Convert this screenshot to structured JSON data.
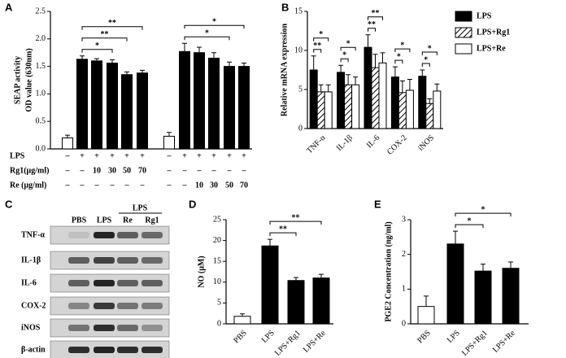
{
  "chart_data": [
    {
      "panel_label": "A",
      "type": "bar",
      "ylabel": [
        "SEAP activity",
        "OD value (630nm)"
      ],
      "values": [
        0.2,
        1.63,
        1.6,
        1.56,
        1.35,
        1.38,
        0.23,
        1.77,
        1.75,
        1.65,
        1.5,
        1.5
      ],
      "errors": [
        0.05,
        0.06,
        0.04,
        0.06,
        0.05,
        0.05,
        0.07,
        0.15,
        0.1,
        0.1,
        0.08,
        0.06
      ],
      "colors": [
        "#ffffff",
        "#000000",
        "#000000",
        "#000000",
        "#000000",
        "#000000",
        "#ffffff",
        "#000000",
        "#000000",
        "#000000",
        "#000000",
        "#000000"
      ],
      "ylim": [
        0,
        2.5
      ],
      "yticks": [
        {
          "value": 0,
          "label": "0.0"
        },
        0.5,
        {
          "value": 1,
          "label": "1.0"
        },
        1.5,
        {
          "value": 2,
          "label": "2.0"
        },
        2.5
      ],
      "condition_table": {
        "row_labels": [
          "LPS",
          "Rg1(μg/ml)",
          "Re (μg/ml)"
        ],
        "rows": [
          [
            "–",
            "+",
            "+",
            "+",
            "+",
            "+",
            "–",
            "+",
            "+",
            "+",
            "+",
            "+"
          ],
          [
            "–",
            "–",
            "10",
            "30",
            "50",
            "70",
            "–",
            "–",
            "–",
            "–",
            "–",
            "–"
          ],
          [
            "–",
            "–",
            "–",
            "–",
            "–",
            "–",
            "–",
            "–",
            "10",
            "30",
            "50",
            "70"
          ]
        ]
      },
      "significance": [
        {
          "pair": [
            1,
            3
          ],
          "label": "*"
        },
        {
          "pair": [
            1,
            4
          ],
          "label": "**"
        },
        {
          "pair": [
            1,
            5
          ],
          "label": "**"
        },
        {
          "pair": [
            7,
            10
          ],
          "label": "*"
        },
        {
          "pair": [
            7,
            11
          ],
          "label": "*"
        }
      ]
    },
    {
      "panel_label": "B",
      "type": "grouped_bar",
      "ylabel": "Relative mRNA expression",
      "categories": [
        "TNF-α",
        "IL-1β",
        "IL-6",
        "COX-2",
        "iNOS"
      ],
      "series": [
        {
          "name": "LPS",
          "color": "#000000",
          "values": [
            7.5,
            7.2,
            10.4,
            6.6,
            6.7
          ],
          "errors": [
            1.8,
            0.9,
            1.6,
            1.3,
            0.8
          ]
        },
        {
          "name": "LPS+Rg1",
          "color": "#ffffff",
          "hatch": true,
          "values": [
            4.7,
            5.6,
            7.8,
            4.6,
            3.2
          ],
          "errors": [
            0.9,
            1.3,
            1.7,
            1.5,
            0.6
          ]
        },
        {
          "name": "LPS+Re",
          "color": "#ffffff",
          "values": [
            4.7,
            5.6,
            8.4,
            4.9,
            4.8
          ],
          "errors": [
            0.9,
            1.0,
            1.3,
            1.4,
            0.9
          ]
        }
      ],
      "ylim": [
        0,
        15
      ],
      "yticks": [
        0,
        5,
        10,
        15
      ],
      "legend": "top-right",
      "significance": [
        {
          "category": 0,
          "pair": [
            0,
            1
          ],
          "label": "**"
        },
        {
          "category": 0,
          "pair": [
            0,
            2
          ],
          "label": "*"
        },
        {
          "category": 1,
          "pair": [
            0,
            1
          ],
          "label": "*"
        },
        {
          "category": 1,
          "pair": [
            0,
            2
          ],
          "label": "*"
        },
        {
          "category": 2,
          "pair": [
            0,
            1
          ],
          "label": "**"
        },
        {
          "category": 2,
          "pair": [
            0,
            2
          ],
          "label": "**"
        },
        {
          "category": 3,
          "pair": [
            0,
            1
          ],
          "label": "*"
        },
        {
          "category": 3,
          "pair": [
            0,
            2
          ],
          "label": "*"
        },
        {
          "category": 4,
          "pair": [
            0,
            1
          ],
          "label": "*"
        },
        {
          "category": 4,
          "pair": [
            0,
            2
          ],
          "label": "*"
        }
      ]
    },
    {
      "panel_label": "D",
      "type": "bar",
      "ylabel": "NO (μM)",
      "categories": [
        "PBS",
        "LPS",
        "LPS+Rg1",
        "LPS+Re"
      ],
      "values": [
        1.8,
        18.7,
        10.4,
        11.0
      ],
      "errors": [
        0.6,
        1.6,
        0.7,
        0.9
      ],
      "colors": [
        "#ffffff",
        "#000000",
        "#000000",
        "#000000"
      ],
      "ylim": [
        0,
        25
      ],
      "yticks": [
        0,
        5,
        10,
        15,
        20,
        25
      ],
      "significance": [
        {
          "pair": [
            1,
            2
          ],
          "label": "**"
        },
        {
          "pair": [
            1,
            3
          ],
          "label": "**"
        }
      ]
    },
    {
      "panel_label": "E",
      "type": "bar",
      "ylabel": "PGE2 Concentration (ng/ml)",
      "categories": [
        "PBS",
        "LPS",
        "LPS+Rg1",
        "LPS+Re"
      ],
      "values": [
        0.5,
        2.3,
        1.52,
        1.6
      ],
      "errors": [
        0.3,
        0.37,
        0.2,
        0.18
      ],
      "colors": [
        "#ffffff",
        "#000000",
        "#000000",
        "#000000"
      ],
      "ylim": [
        0,
        3
      ],
      "yticks": [
        0,
        1,
        2,
        3
      ],
      "significance": [
        {
          "pair": [
            1,
            2
          ],
          "label": "*"
        },
        {
          "pair": [
            1,
            3
          ],
          "label": "*"
        }
      ]
    }
  ],
  "blot": {
    "panel_label": "C",
    "columns": [
      "PBS",
      "LPS",
      "Re",
      "Rg1"
    ],
    "group_label": "LPS",
    "rows": [
      "TNF-α",
      "IL-1β",
      "IL-6",
      "COX-2",
      "iNOS",
      "β-actin"
    ]
  }
}
